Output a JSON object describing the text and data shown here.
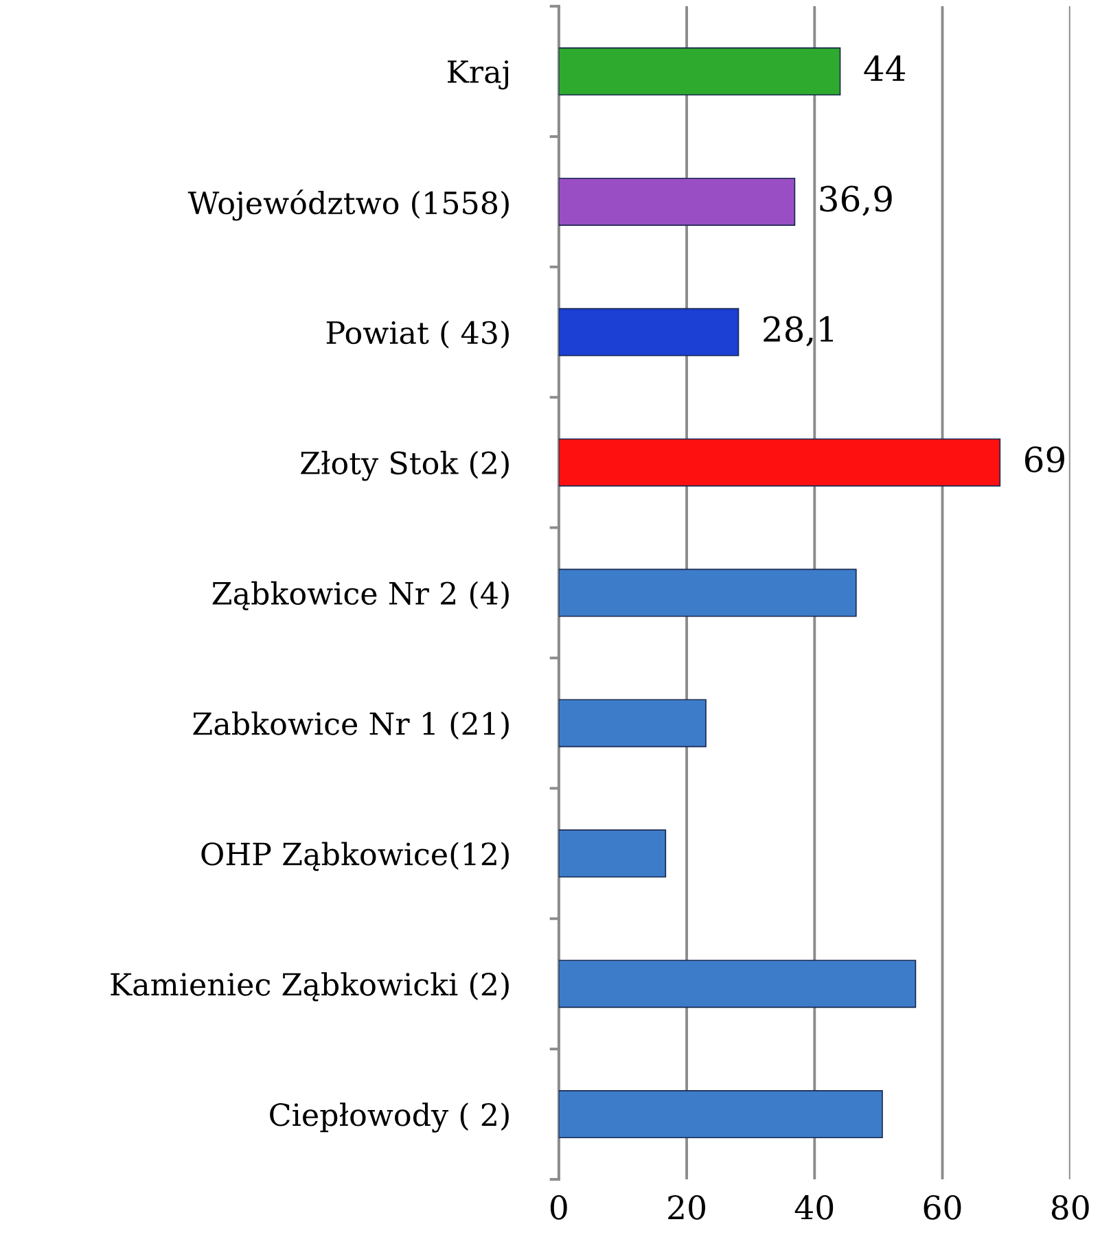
{
  "chart_data": {
    "type": "bar",
    "orientation": "horizontal",
    "categories": [
      "Kraj",
      "Województwo (1558)",
      "Powiat ( 43)",
      "Złoty Stok (2)",
      "Ząbkowice Nr 2 (4)",
      "Zabkowice Nr 1 (21)",
      "OHP Ząbkowice(12)",
      "Kamieniec Ząbkowicki (2)",
      "Ciepłowody ( 2)"
    ],
    "values": [
      44,
      36.9,
      28.1,
      69,
      46.5,
      23,
      16.7,
      55.8,
      50.6
    ],
    "colors": [
      "#2eaa2e",
      "#9a4ec4",
      "#1c3fd4",
      "#ff1010",
      "#3d7cc9",
      "#3d7cc9",
      "#3d7cc9",
      "#3d7cc9",
      "#3d7cc9"
    ],
    "value_labels": [
      "44",
      "36,9",
      "28,1",
      "69",
      null,
      null,
      null,
      null,
      null
    ],
    "xlim": [
      0,
      80
    ],
    "xticks": [
      0,
      20,
      40,
      60,
      80
    ],
    "grid": "x",
    "legend": false
  }
}
